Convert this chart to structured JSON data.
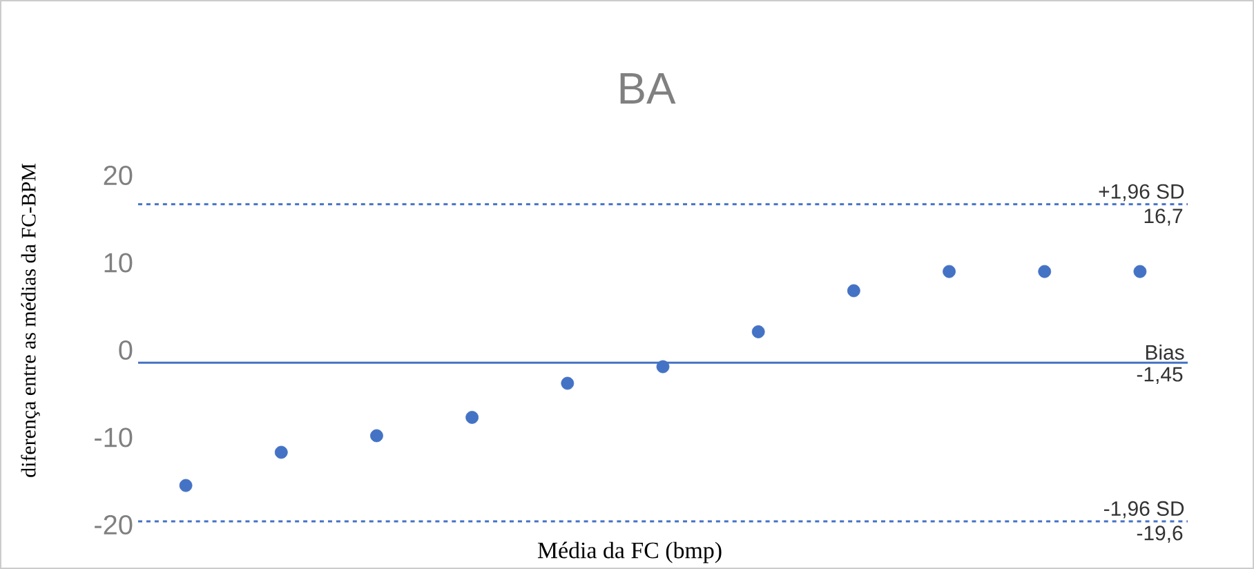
{
  "chart_data": {
    "type": "scatter",
    "title": "BA",
    "xlabel": "Média da FC (bmp)",
    "ylabel": "diferença entre as médias da FC-BPM",
    "categories": [
      null,
      null,
      null,
      null,
      null,
      null,
      null,
      null,
      null,
      null,
      null
    ],
    "values": [
      -15.5,
      -11.7,
      -9.8,
      -7.7,
      -3.8,
      -1.9,
      2.1,
      6.8,
      9.0,
      9.0,
      9.0
    ],
    "color": "#4472c4",
    "marker": "circle",
    "grid": false,
    "tick_labels": "y",
    "ylim": [
      -20,
      20
    ],
    "yticks": [
      -20,
      -10,
      0,
      10,
      20
    ],
    "ref_lines": [
      {
        "axis": "y",
        "value": 16.7,
        "label": "+1,96 SD",
        "color": "#4472c4",
        "line_style": "dashed"
      },
      {
        "axis": "y",
        "value": -1.45,
        "label": "Bias",
        "color": "#4472c4",
        "line_style": "solid"
      },
      {
        "axis": "y",
        "value": -19.6,
        "label": "-1,96 SD",
        "color": "#4472c4",
        "line_style": "dashed"
      }
    ],
    "annotations": [
      {
        "text": "16,7",
        "y": 16.7
      },
      {
        "text": "-1,45",
        "y": -1.45
      },
      {
        "text": "-19,6",
        "y": -19.6
      }
    ]
  }
}
